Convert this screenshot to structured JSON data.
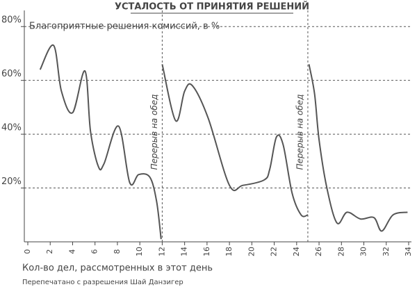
{
  "chart_data": {
    "type": "line",
    "title": "УСТАЛОСТЬ ОТ ПРИНЯТИЯ РЕШЕНИЙ",
    "subtitle": "Благоприятные решения комиссий, в %",
    "x_label": "Кол-во дел, рассмотренных в этот день",
    "credit": "Перепечатано с разрешения Шай Данзигер",
    "xlim": [
      0,
      34
    ],
    "ylim": [
      0,
      86
    ],
    "xticks": [
      0,
      2,
      4,
      6,
      8,
      10,
      12,
      14,
      16,
      18,
      20,
      22,
      24,
      26,
      28,
      30,
      32,
      34
    ],
    "yticks": [
      {
        "value": 20,
        "label": "20%"
      },
      {
        "value": 40,
        "label": "40%"
      },
      {
        "value": 60,
        "label": "60%"
      },
      {
        "value": 80,
        "label": "80%"
      }
    ],
    "grid": true,
    "color": "#555555",
    "annotations": [
      {
        "x": 12,
        "text": "Перерыв на обед"
      },
      {
        "x": 25,
        "text": "Перерыв на обед"
      }
    ],
    "series": [
      {
        "x": [
          1.1,
          2.3,
          3.0,
          4.0,
          5.1,
          5.6,
          6.3,
          6.8,
          8.1,
          9.1,
          9.9,
          10.9,
          11.5,
          11.9
        ],
        "values": [
          64,
          73,
          56,
          48,
          63.5,
          41,
          28,
          29,
          43,
          22,
          25,
          24,
          15,
          1
        ]
      },
      {
        "x": [
          12.0,
          13.2,
          14.0,
          14.7,
          16.1,
          18.0,
          19.2,
          21.1,
          21.6,
          22.2,
          22.8,
          23.6,
          24.4,
          25.0
        ],
        "values": [
          66,
          45,
          56,
          58,
          46,
          21,
          21,
          23,
          27,
          39,
          36,
          18,
          10,
          10
        ]
      },
      {
        "x": [
          25.1,
          25.6,
          26.0,
          26.7,
          27.6,
          28.5,
          29.7,
          30.9,
          31.6,
          32.6,
          33.9
        ],
        "values": [
          66,
          55,
          38,
          20,
          7,
          11,
          8.5,
          9,
          4,
          10,
          11
        ]
      }
    ]
  }
}
